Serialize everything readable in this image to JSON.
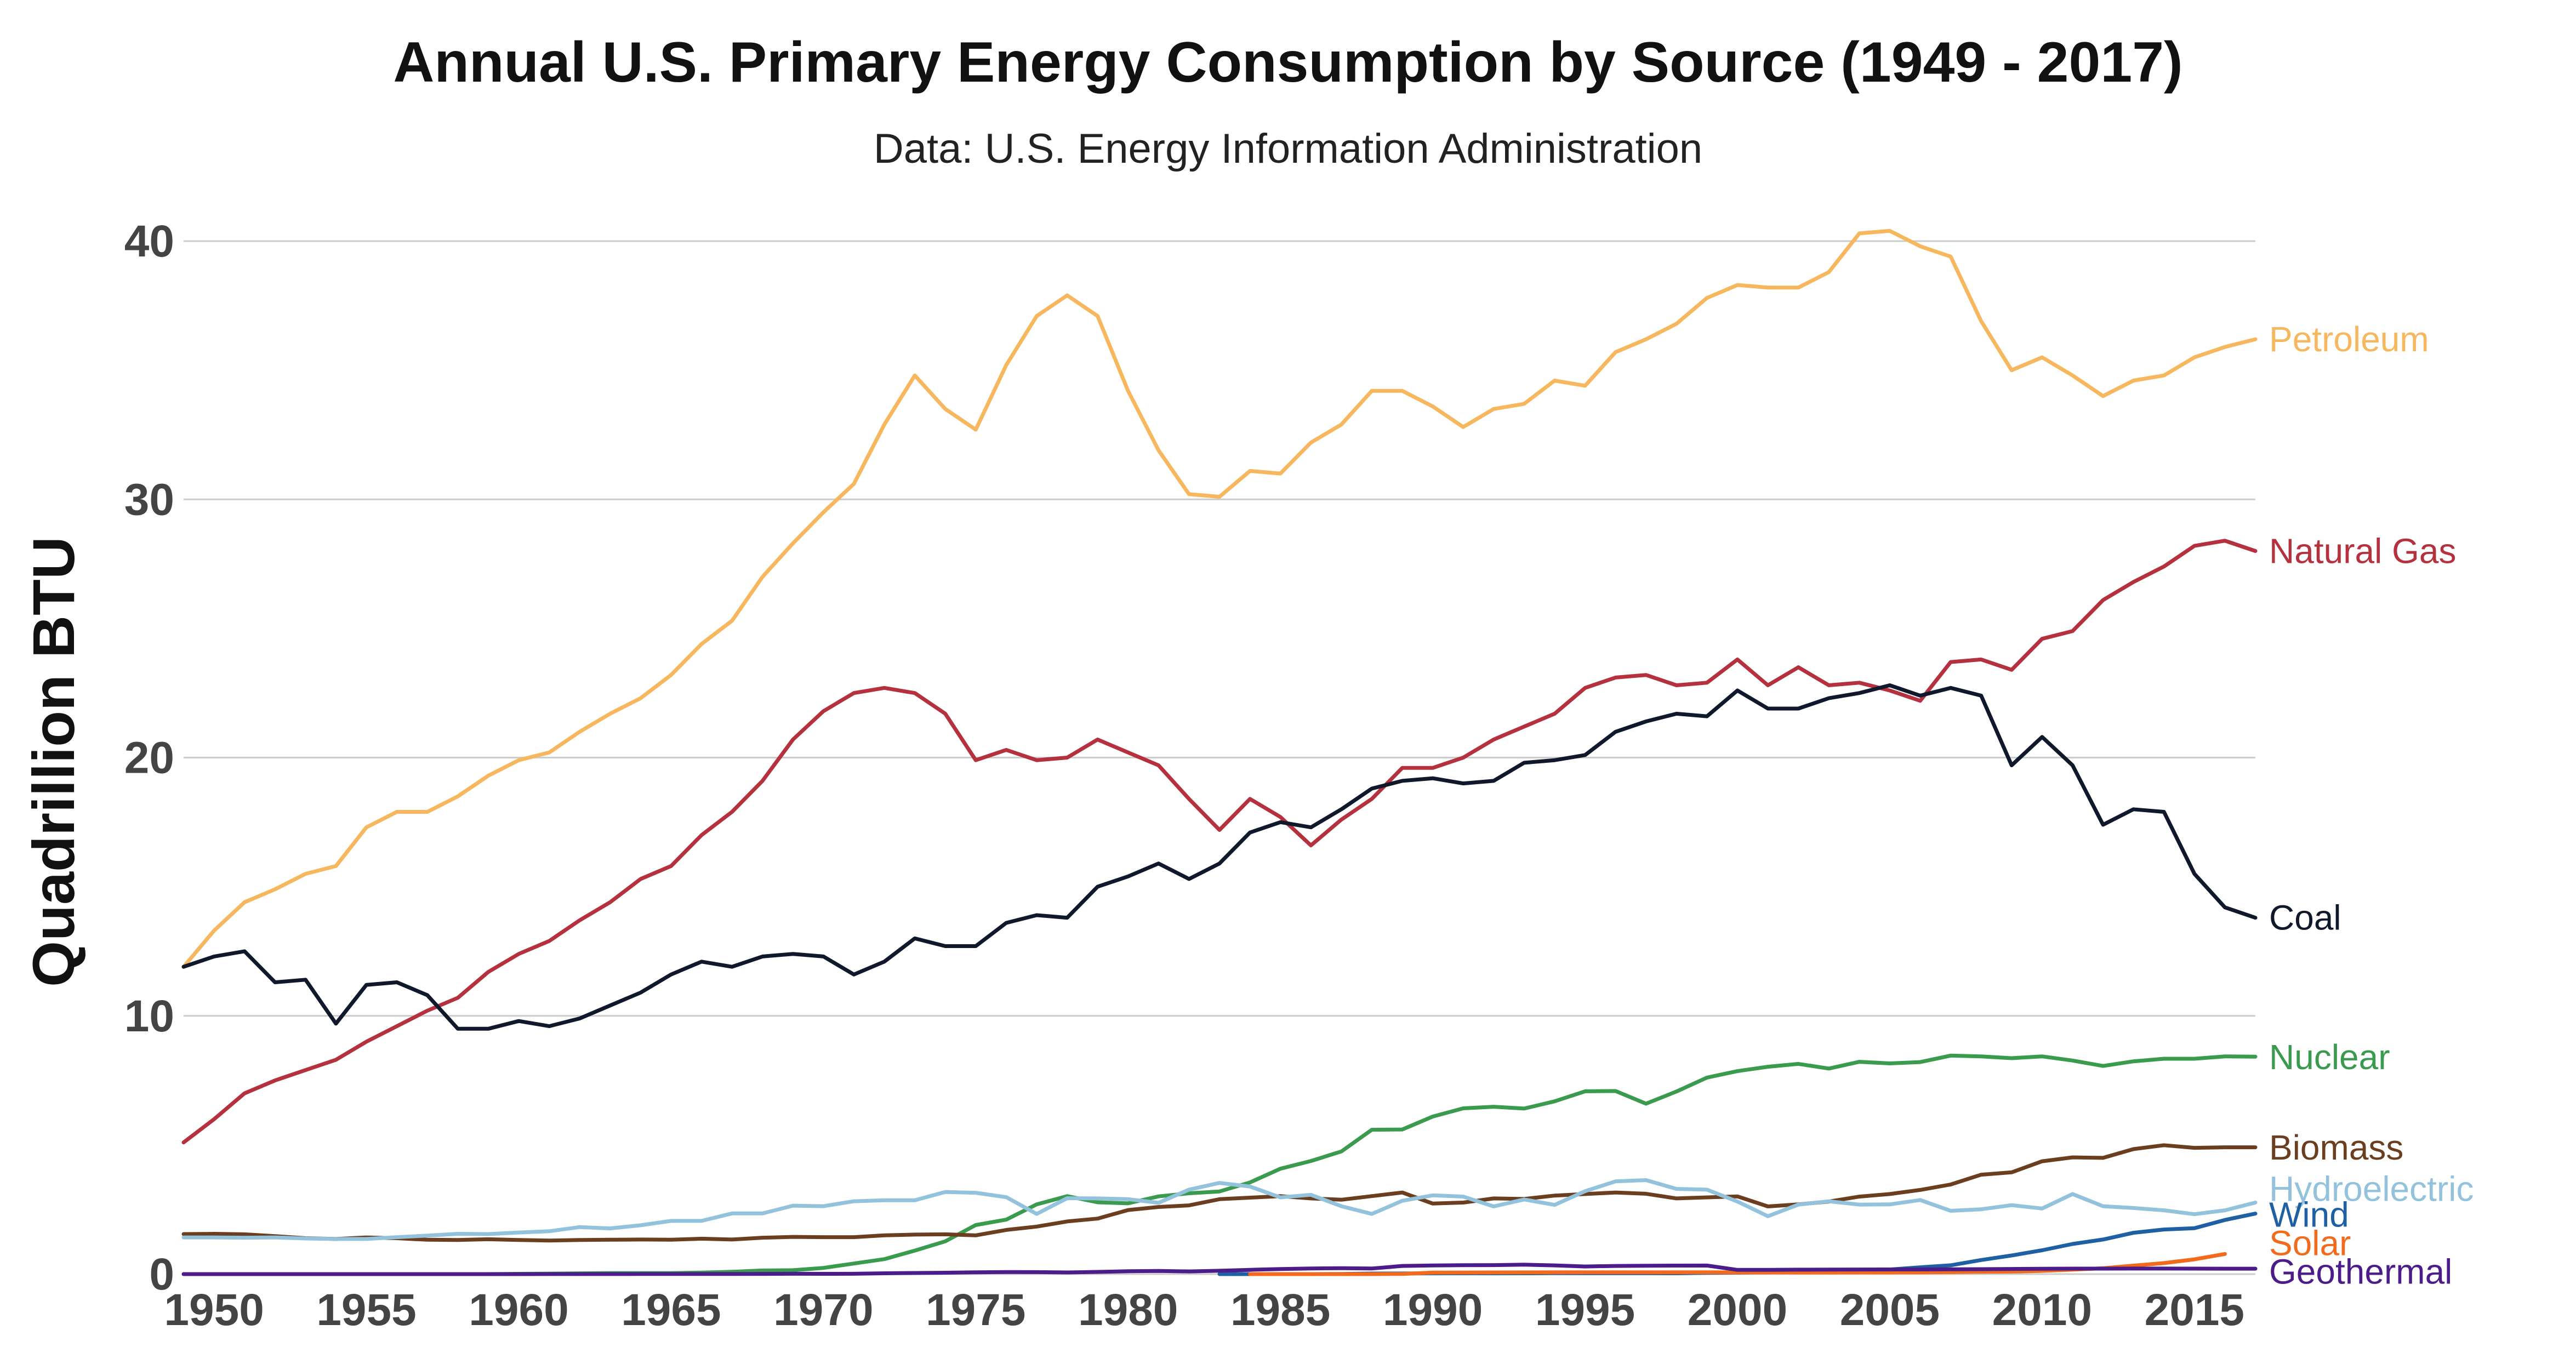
{
  "chart_data": {
    "type": "line",
    "title": "Annual U.S. Primary Energy Consumption by Source (1949 - 2017)",
    "subtitle": "Data: U.S. Energy Information Administration",
    "ylabel": "Quadrillion BTU",
    "xlabel": "",
    "xlim": [
      1949,
      2017
    ],
    "ylim": [
      0,
      40
    ],
    "grid": true,
    "legend": "labels at line ends (right)",
    "x_ticks": [
      1950,
      1955,
      1960,
      1965,
      1970,
      1975,
      1980,
      1985,
      1990,
      1995,
      2000,
      2005,
      2010,
      2015
    ],
    "y_ticks": [
      0,
      10,
      20,
      30,
      40
    ],
    "series": [
      {
        "name": "Petroleum",
        "color": "#F7B75E",
        "x_start": 1949,
        "values": [
          11.9,
          13.3,
          14.4,
          14.9,
          15.5,
          15.8,
          17.3,
          17.9,
          17.9,
          18.5,
          19.3,
          19.9,
          20.2,
          21.0,
          21.7,
          22.3,
          23.2,
          24.4,
          25.3,
          27.0,
          28.3,
          29.5,
          30.6,
          32.9,
          34.8,
          33.5,
          32.7,
          35.2,
          37.1,
          37.9,
          37.1,
          34.2,
          31.9,
          30.2,
          30.1,
          31.1,
          31.0,
          32.2,
          32.9,
          34.2,
          34.2,
          33.6,
          32.8,
          33.5,
          33.7,
          34.6,
          34.4,
          35.7,
          36.2,
          36.8,
          37.8,
          38.3,
          38.2,
          38.2,
          38.8,
          40.3,
          40.4,
          39.8,
          39.4,
          36.9,
          35.0,
          35.5,
          34.8,
          34.0,
          34.6,
          34.8,
          35.5,
          35.9,
          36.2
        ]
      },
      {
        "name": "Natural Gas",
        "color": "#B5313E",
        "x_start": 1949,
        "values": [
          5.1,
          6.0,
          7.0,
          7.5,
          7.9,
          8.3,
          9.0,
          9.6,
          10.2,
          10.7,
          11.7,
          12.4,
          12.9,
          13.7,
          14.4,
          15.3,
          15.8,
          17.0,
          17.9,
          19.1,
          20.7,
          21.8,
          22.5,
          22.7,
          22.5,
          21.7,
          19.9,
          20.3,
          19.9,
          20.0,
          20.7,
          20.2,
          19.7,
          18.4,
          17.2,
          18.4,
          17.7,
          16.6,
          17.6,
          18.4,
          19.6,
          19.6,
          20.0,
          20.7,
          21.2,
          21.7,
          22.7,
          23.1,
          23.2,
          22.8,
          22.9,
          23.8,
          22.8,
          23.5,
          22.8,
          22.9,
          22.6,
          22.2,
          23.7,
          23.8,
          23.4,
          24.6,
          24.9,
          26.1,
          26.8,
          27.4,
          28.2,
          28.4,
          28.0
        ]
      },
      {
        "name": "Coal",
        "color": "#10182B",
        "x_start": 1949,
        "values": [
          11.9,
          12.3,
          12.5,
          11.3,
          11.4,
          9.7,
          11.2,
          11.3,
          10.8,
          9.5,
          9.5,
          9.8,
          9.6,
          9.9,
          10.4,
          10.9,
          11.6,
          12.1,
          11.9,
          12.3,
          12.4,
          12.3,
          11.6,
          12.1,
          13.0,
          12.7,
          12.7,
          13.6,
          13.9,
          13.8,
          15.0,
          15.4,
          15.9,
          15.3,
          15.9,
          17.1,
          17.5,
          17.3,
          18.0,
          18.8,
          19.1,
          19.2,
          19.0,
          19.1,
          19.8,
          19.9,
          20.1,
          21.0,
          21.4,
          21.7,
          21.6,
          22.6,
          21.9,
          21.9,
          22.3,
          22.5,
          22.8,
          22.4,
          22.7,
          22.4,
          19.7,
          20.8,
          19.7,
          17.4,
          18.0,
          17.9,
          15.5,
          14.2,
          13.8
        ]
      },
      {
        "name": "Nuclear",
        "color": "#3A9A4E",
        "x_start": 1949,
        "values": [
          0,
          0,
          0,
          0,
          0,
          0,
          0,
          0,
          0,
          0,
          0,
          0.01,
          0.02,
          0.03,
          0.04,
          0.04,
          0.04,
          0.06,
          0.09,
          0.14,
          0.15,
          0.24,
          0.41,
          0.58,
          0.91,
          1.27,
          1.9,
          2.11,
          2.7,
          3.02,
          2.78,
          2.74,
          3.01,
          3.13,
          3.2,
          3.55,
          4.08,
          4.38,
          4.75,
          5.59,
          5.6,
          6.1,
          6.42,
          6.48,
          6.41,
          6.69,
          7.08,
          7.09,
          6.6,
          7.07,
          7.61,
          7.86,
          8.03,
          8.14,
          7.96,
          8.22,
          8.16,
          8.21,
          8.46,
          8.43,
          8.36,
          8.43,
          8.27,
          8.06,
          8.24,
          8.34,
          8.34,
          8.43,
          8.42
        ]
      },
      {
        "name": "Biomass",
        "color": "#6B3E20",
        "x_start": 1949,
        "values": [
          1.55,
          1.56,
          1.54,
          1.47,
          1.39,
          1.36,
          1.42,
          1.39,
          1.33,
          1.32,
          1.35,
          1.32,
          1.3,
          1.32,
          1.33,
          1.34,
          1.33,
          1.37,
          1.34,
          1.41,
          1.44,
          1.43,
          1.43,
          1.5,
          1.53,
          1.54,
          1.5,
          1.71,
          1.84,
          2.04,
          2.15,
          2.48,
          2.6,
          2.66,
          2.9,
          2.96,
          3.02,
          2.93,
          2.88,
          3.02,
          3.16,
          2.73,
          2.77,
          2.93,
          2.91,
          3.04,
          3.1,
          3.16,
          3.11,
          2.93,
          2.97,
          3.01,
          2.62,
          2.7,
          2.81,
          3.0,
          3.1,
          3.26,
          3.47,
          3.85,
          3.94,
          4.37,
          4.52,
          4.5,
          4.84,
          4.99,
          4.89,
          4.91,
          4.91
        ]
      },
      {
        "name": "Hydroelectric",
        "color": "#92C2DC",
        "x_start": 1949,
        "values": [
          1.42,
          1.42,
          1.41,
          1.42,
          1.38,
          1.36,
          1.36,
          1.43,
          1.49,
          1.56,
          1.55,
          1.61,
          1.66,
          1.82,
          1.77,
          1.89,
          2.06,
          2.06,
          2.35,
          2.35,
          2.65,
          2.63,
          2.82,
          2.86,
          2.86,
          3.18,
          3.15,
          2.98,
          2.33,
          2.94,
          2.93,
          2.9,
          2.76,
          3.27,
          3.53,
          3.39,
          2.97,
          3.07,
          2.63,
          2.33,
          2.84,
          3.05,
          3.0,
          2.62,
          2.89,
          2.68,
          3.21,
          3.59,
          3.64,
          3.3,
          3.27,
          2.81,
          2.24,
          2.69,
          2.82,
          2.69,
          2.7,
          2.87,
          2.45,
          2.51,
          2.67,
          2.54,
          3.1,
          2.63,
          2.56,
          2.47,
          2.32,
          2.47,
          2.77
        ]
      },
      {
        "name": "Wind",
        "color": "#1F5FA3",
        "x_start": 1983,
        "values": [
          3e-05,
          7e-05,
          6e-05,
          4e-05,
          0.0036,
          0.022,
          0.024,
          0.029,
          0.031,
          0.03,
          0.031,
          0.036,
          0.033,
          0.033,
          0.034,
          0.031,
          0.046,
          0.057,
          0.07,
          0.105,
          0.115,
          0.142,
          0.178,
          0.264,
          0.341,
          0.546,
          0.721,
          0.923,
          1.168,
          1.34,
          1.601,
          1.728,
          1.777,
          2.096,
          2.343
        ]
      },
      {
        "name": "Solar",
        "color": "#F26B1D",
        "x_start": 1984,
        "values": [
          4e-05,
          0.00011,
          0.00015,
          0.00035,
          0.00042,
          0.0055,
          0.059,
          0.062,
          0.063,
          0.066,
          0.069,
          0.07,
          0.071,
          0.07,
          0.07,
          0.069,
          0.066,
          0.065,
          0.064,
          0.064,
          0.065,
          0.066,
          0.068,
          0.076,
          0.089,
          0.098,
          0.126,
          0.171,
          0.227,
          0.329,
          0.427,
          0.57,
          0.778
        ]
      },
      {
        "name": "Geothermal",
        "color": "#4C1D8A",
        "x_start": 1949,
        "values": [
          0,
          0,
          0,
          0,
          0,
          0,
          0,
          0,
          0,
          0,
          0,
          0.001,
          0.002,
          0.002,
          0.003,
          0.004,
          0.004,
          0.004,
          0.007,
          0.009,
          0.013,
          0.011,
          0.012,
          0.031,
          0.043,
          0.053,
          0.07,
          0.078,
          0.077,
          0.064,
          0.084,
          0.11,
          0.123,
          0.105,
          0.129,
          0.165,
          0.198,
          0.219,
          0.229,
          0.217,
          0.317,
          0.336,
          0.346,
          0.349,
          0.364,
          0.338,
          0.294,
          0.316,
          0.325,
          0.328,
          0.331,
          0.164,
          0.164,
          0.171,
          0.175,
          0.178,
          0.181,
          0.181,
          0.186,
          0.192,
          0.2,
          0.208,
          0.212,
          0.212,
          0.214,
          0.214,
          0.212,
          0.21,
          0.21
        ]
      }
    ],
    "end_labels": [
      {
        "text": "Petroleum",
        "value": 36.2
      },
      {
        "text": "Natural Gas",
        "value": 28.0
      },
      {
        "text": "Coal",
        "value": 13.8
      },
      {
        "text": "Nuclear",
        "value": 8.4
      },
      {
        "text": "Biomass",
        "value": 4.9
      },
      {
        "text": "Hydroelectric",
        "value": 3.3
      },
      {
        "text": "Wind",
        "value": 2.3
      },
      {
        "text": "Solar",
        "value": 1.2
      },
      {
        "text": "Geothermal",
        "value": 0.1
      }
    ]
  }
}
